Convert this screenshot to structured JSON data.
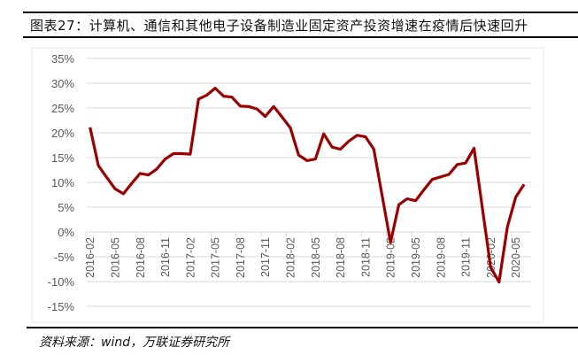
{
  "title": "图表27：计算机、通信和其他电子设备制造业固定资产投资增速在疫情后快速回升",
  "source": "资料来源：wind，万联证券研究所",
  "chart_data": {
    "type": "line",
    "title": "图表27：计算机、通信和其他电子设备制造业固定资产投资增速在疫情后快速回升",
    "xlabel": "",
    "ylabel": "",
    "ylim": [
      -15,
      35
    ],
    "yticks": [
      35,
      30,
      25,
      20,
      15,
      10,
      5,
      0,
      -5,
      -10,
      -15
    ],
    "ytick_labels": [
      "35%",
      "30%",
      "25%",
      "20%",
      "15%",
      "10%",
      "5%",
      "0%",
      "-5%",
      "-10%",
      "-15%"
    ],
    "grid": true,
    "legend": "none",
    "line_color": "#9B0000",
    "x": [
      "2016-02",
      "2016-03",
      "2016-04",
      "2016-05",
      "2016-06",
      "2016-07",
      "2016-08",
      "2016-09",
      "2016-10",
      "2016-11",
      "2016-12",
      "2017-01",
      "2017-02",
      "2017-03",
      "2017-04",
      "2017-05",
      "2017-06",
      "2017-07",
      "2017-08",
      "2017-09",
      "2017-10",
      "2017-11",
      "2017-12",
      "2018-01",
      "2018-02",
      "2018-03",
      "2018-04",
      "2018-05",
      "2018-06",
      "2018-07",
      "2018-08",
      "2018-09",
      "2018-10",
      "2018-11",
      "2018-12",
      "2019-01",
      "2019-02",
      "2019-03",
      "2019-04",
      "2019-05",
      "2019-06",
      "2019-07",
      "2019-08",
      "2019-09",
      "2019-10",
      "2019-11",
      "2019-12",
      "2020-01",
      "2020-02",
      "2020-03",
      "2020-04",
      "2020-05",
      "2020-06"
    ],
    "xtick_labels": [
      "2016-02",
      "2016-05",
      "2016-08",
      "2016-11",
      "2017-02",
      "2017-05",
      "2017-08",
      "2017-11",
      "2018-02",
      "2018-05",
      "2018-08",
      "2018-11",
      "2019-02",
      "2019-05",
      "2019-08",
      "2019-11",
      "2020-02",
      "2020-05"
    ],
    "series": [
      {
        "values": [
          21.1,
          13.4,
          11.0,
          8.7,
          7.7,
          9.8,
          11.8,
          11.5,
          12.7,
          14.7,
          15.8,
          15.8,
          15.7,
          26.8,
          27.6,
          29.0,
          27.4,
          27.2,
          25.4,
          25.3,
          24.8,
          23.3,
          25.3,
          23.2,
          21.0,
          15.5,
          14.4,
          14.7,
          19.8,
          17.1,
          16.7,
          18.3,
          19.5,
          19.2,
          16.7,
          null,
          -2.1,
          5.5,
          6.7,
          6.3,
          8.5,
          10.6,
          11.1,
          11.6,
          13.6,
          13.9,
          16.9,
          null,
          -7.1,
          -10.1,
          1.0,
          7.0,
          9.6
        ]
      }
    ]
  }
}
